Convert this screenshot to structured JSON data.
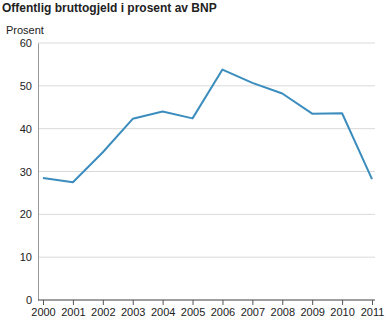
{
  "chart_data": {
    "type": "line",
    "title": "Offentlig bruttogjeld i prosent av BNP",
    "y_label": "Prosent",
    "categories": [
      "2000",
      "2001",
      "2002",
      "2003",
      "2004",
      "2005",
      "2006",
      "2007",
      "2008",
      "2009",
      "2010",
      "2011"
    ],
    "values": [
      28.5,
      27.5,
      34.5,
      42.3,
      44.0,
      42.4,
      53.8,
      50.7,
      48.2,
      43.5,
      43.6,
      28.2
    ],
    "color": "#3b8dbd",
    "ylim": [
      0,
      60
    ],
    "yticks": [
      0,
      10,
      20,
      30,
      40,
      50,
      60
    ],
    "grid": true
  }
}
